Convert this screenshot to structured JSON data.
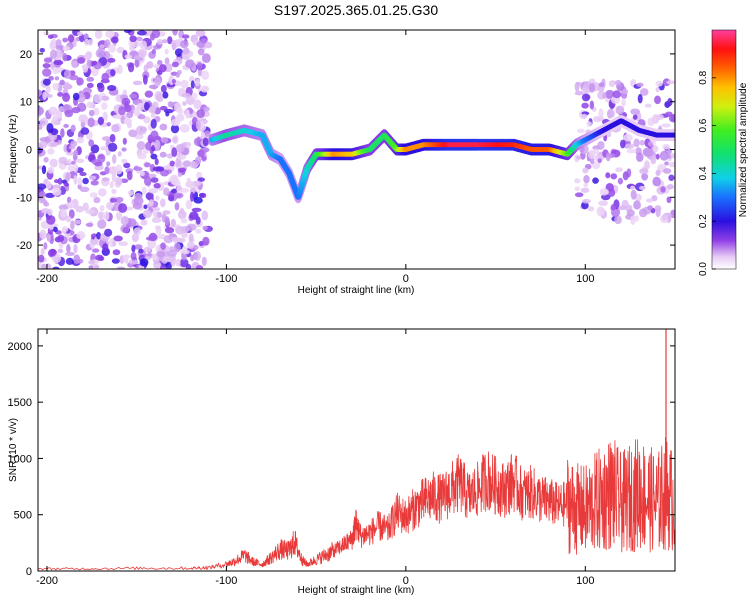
{
  "title": "S197.2025.365.01.25.G30",
  "chart_data": [
    {
      "type": "heatmap",
      "title": "S197.2025.365.01.25.G30",
      "xlabel": "Height of straight line (km)",
      "ylabel": "Frequency (Hz)",
      "xlim": [
        -205,
        150
      ],
      "ylim": [
        -25,
        25
      ],
      "xticks": [
        -200,
        -100,
        0,
        100
      ],
      "yticks": [
        -20,
        -10,
        0,
        10,
        20
      ],
      "colorbar": {
        "label": "Normalized spectral amplitude",
        "range": [
          0,
          1
        ],
        "ticks": [
          0.0,
          0.2,
          0.4,
          0.6,
          0.8
        ]
      },
      "ridge": {
        "description_x": [
          -108,
          -100,
          -90,
          -80,
          -75,
          -70,
          -65,
          -60,
          -55,
          -50,
          -40,
          -30,
          -20,
          -12,
          -5,
          0,
          10,
          25,
          40,
          60,
          70,
          80,
          90,
          95,
          100,
          110,
          120,
          130,
          140,
          150
        ],
        "frequency_hz": [
          2,
          3,
          4,
          3,
          -1,
          -2,
          -5,
          -10,
          -4,
          -1,
          -1,
          -1,
          0,
          3,
          0,
          0,
          1,
          1,
          1,
          1,
          0,
          0,
          -1,
          1,
          2,
          4,
          6,
          4,
          3,
          3
        ],
        "amplitude": [
          0.35,
          0.45,
          0.4,
          0.35,
          0.35,
          0.3,
          0.3,
          0.3,
          0.4,
          0.5,
          0.8,
          0.75,
          0.5,
          0.5,
          0.6,
          0.8,
          0.8,
          0.95,
          0.95,
          0.9,
          0.85,
          0.85,
          0.6,
          0.4,
          0.3,
          0.2,
          0.2,
          0.2,
          0.2,
          0.2
        ]
      }
    },
    {
      "type": "line",
      "xlabel": "Height of straight line (km)",
      "ylabel": "SNR (10 * v/v)",
      "xlim": [
        -205,
        150
      ],
      "ylim": [
        0,
        2150
      ],
      "xticks": [
        -200,
        -100,
        0,
        100
      ],
      "yticks": [
        0,
        500,
        1000,
        1500,
        2000
      ],
      "series": [
        {
          "name": "SNR",
          "color": "#e83a3a",
          "x": [
            -205,
            -180,
            -150,
            -120,
            -110,
            -100,
            -95,
            -90,
            -85,
            -80,
            -75,
            -70,
            -65,
            -62,
            -58,
            -55,
            -50,
            -45,
            -40,
            -35,
            -30,
            -28,
            -25,
            -20,
            -15,
            -10,
            -5,
            0,
            5,
            10,
            15,
            20,
            25,
            30,
            35,
            40,
            45,
            50,
            55,
            60,
            65,
            70,
            75,
            80,
            85,
            90,
            95,
            100,
            105,
            110,
            115,
            120,
            125,
            130,
            135,
            140,
            145,
            150
          ],
          "values": [
            20,
            20,
            25,
            25,
            30,
            60,
            90,
            140,
            80,
            60,
            120,
            190,
            180,
            260,
            100,
            60,
            100,
            140,
            180,
            230,
            280,
            420,
            310,
            340,
            400,
            360,
            520,
            480,
            560,
            620,
            660,
            640,
            720,
            780,
            660,
            720,
            820,
            760,
            720,
            800,
            680,
            700,
            640,
            620,
            580,
            600,
            550,
            540,
            600,
            650,
            700,
            600,
            650,
            700,
            650,
            600,
            700,
            600
          ]
        }
      ]
    }
  ]
}
